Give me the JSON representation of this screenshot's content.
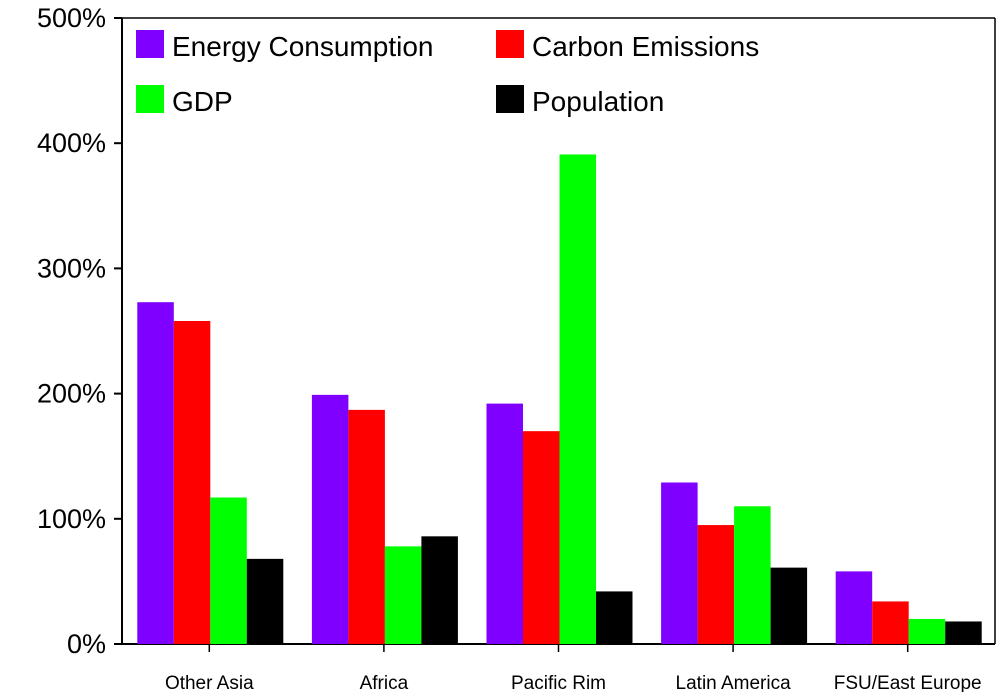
{
  "chart_data": {
    "type": "bar",
    "title": "",
    "xlabel": "",
    "ylabel": "",
    "categories": [
      "Other Asia",
      "Africa",
      "Pacific Rim",
      "Latin America",
      "FSU/East Europe"
    ],
    "series": [
      {
        "name": "Energy Consumption",
        "color": "#8000ff",
        "values": [
          273,
          199,
          192,
          129,
          58
        ]
      },
      {
        "name": "Carbon Emissions",
        "color": "#ff0000",
        "values": [
          258,
          187,
          170,
          95,
          34
        ]
      },
      {
        "name": "GDP",
        "color": "#00ff00",
        "values": [
          117,
          78,
          391,
          110,
          20
        ]
      },
      {
        "name": "Population",
        "color": "#000000",
        "values": [
          68,
          86,
          42,
          61,
          18
        ]
      }
    ],
    "ylim": [
      0,
      500
    ],
    "yticks": [
      0,
      100,
      200,
      300,
      400,
      500
    ],
    "ytick_labels": [
      "0%",
      "100%",
      "200%",
      "300%",
      "400%",
      "500%"
    ],
    "grid": false,
    "legend_position": "top-left (inside plot)"
  }
}
